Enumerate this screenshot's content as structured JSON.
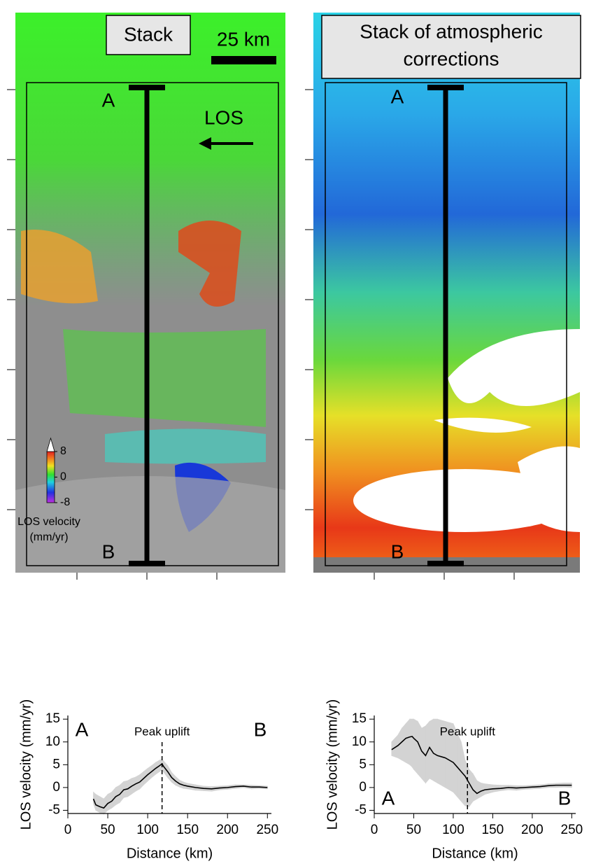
{
  "maps": [
    {
      "title": "Stack",
      "scale_label": "25 km",
      "profile_start": "A",
      "profile_end": "B",
      "los_label": "LOS",
      "colorbar": {
        "lim": [
          -8,
          8
        ],
        "ticks": [
          8,
          0,
          -8
        ],
        "label_lines": [
          "LOS velocity",
          "(mm/yr)"
        ]
      }
    },
    {
      "title_lines": [
        "Stack of atmospheric",
        "corrections"
      ],
      "profile_start": "A",
      "profile_end": "B"
    }
  ],
  "chart_data": [
    {
      "type": "line",
      "xlabel": "Distance (km)",
      "ylabel": "LOS velocity (mm/yr)",
      "xlim": [
        0,
        255
      ],
      "ylim": [
        -5.7,
        15.8
      ],
      "xticks": [
        0,
        50,
        100,
        150,
        200,
        250
      ],
      "yticks": [
        -5,
        0,
        5,
        10,
        15
      ],
      "label_start": "A",
      "label_end": "B",
      "label_position": "top",
      "peak_x": 118,
      "peak_label": "Peak uplift",
      "color": "#000000",
      "band_color": "#d3d3d3",
      "x": [
        32,
        35,
        40,
        45,
        50,
        55,
        60,
        65,
        70,
        75,
        80,
        85,
        90,
        95,
        100,
        105,
        110,
        115,
        118,
        120,
        125,
        130,
        135,
        140,
        145,
        150,
        160,
        170,
        180,
        190,
        200,
        210,
        220,
        230,
        240,
        250
      ],
      "values": [
        -2.5,
        -3.8,
        -4.2,
        -4.5,
        -3.5,
        -3,
        -2,
        -1.5,
        -0.5,
        -0.3,
        0.3,
        0.8,
        1.2,
        2,
        2.8,
        3.5,
        4.2,
        4.8,
        5.2,
        4.6,
        3.5,
        2.2,
        1.4,
        0.8,
        0.5,
        0.3,
        0,
        -0.2,
        -0.3,
        -0.1,
        0,
        0.2,
        0.3,
        0.1,
        0.1,
        0
      ],
      "upper": [
        -1,
        -1.5,
        -2,
        -2.5,
        -1.5,
        -1,
        0,
        0.5,
        1.3,
        1.5,
        2,
        2.3,
        2.8,
        3.5,
        4.2,
        4.8,
        5.5,
        6,
        6.2,
        5.8,
        4.8,
        3.3,
        2.4,
        1.6,
        1.2,
        0.9,
        0.6,
        0.3,
        0.2,
        0.3,
        0.4,
        0.6,
        0.6,
        0.5,
        0.4,
        0.3
      ],
      "lower": [
        -3.5,
        -5,
        -5.5,
        -5.8,
        -5,
        -4.5,
        -3.8,
        -3.3,
        -2.2,
        -2,
        -1.4,
        -0.8,
        -0.3,
        0.6,
        1.4,
        2.2,
        2.9,
        3.5,
        3.9,
        3.4,
        2.2,
        1.2,
        0.5,
        0.1,
        -0.2,
        -0.3,
        -0.6,
        -0.7,
        -0.8,
        -0.5,
        -0.4,
        -0.2,
        0,
        -0.3,
        -0.2,
        -0.3
      ]
    },
    {
      "type": "line",
      "xlabel": "Distance (km)",
      "ylabel": "LOS velocity (mm/yr)",
      "xlim": [
        0,
        255
      ],
      "ylim": [
        -5.7,
        15.8
      ],
      "xticks": [
        0,
        50,
        100,
        150,
        200,
        250
      ],
      "yticks": [
        -5,
        0,
        5,
        10,
        15
      ],
      "label_start": "A",
      "label_end": "B",
      "label_position": "bottom",
      "peak_x": 118,
      "peak_label": "Peak uplift",
      "color": "#000000",
      "band_color": "#d3d3d3",
      "x": [
        22,
        30,
        35,
        40,
        45,
        48,
        50,
        55,
        60,
        65,
        70,
        75,
        80,
        90,
        100,
        105,
        110,
        115,
        120,
        125,
        130,
        135,
        140,
        150,
        160,
        170,
        180,
        190,
        200,
        210,
        220,
        230,
        240,
        250
      ],
      "values": [
        8.3,
        9.2,
        10,
        10.8,
        11.1,
        11.2,
        10.8,
        10,
        8,
        7,
        8.8,
        7.5,
        7,
        6.5,
        5.5,
        4.5,
        3.5,
        2.5,
        1,
        -0.5,
        -1.3,
        -0.8,
        -0.5,
        -0.3,
        -0.2,
        0,
        -0.1,
        0,
        0.1,
        0.2,
        0.4,
        0.5,
        0.5,
        0.5
      ],
      "upper": [
        10,
        11.5,
        13,
        14,
        15,
        15,
        15,
        14.5,
        13,
        13.5,
        14.5,
        15,
        15,
        14.5,
        14,
        12,
        10,
        6,
        4,
        3,
        1.5,
        1,
        0.8,
        0.6,
        0.5,
        0.5,
        0.4,
        0.4,
        0.5,
        0.6,
        0.8,
        0.9,
        1,
        1
      ],
      "lower": [
        7,
        6.5,
        6,
        5.5,
        5,
        4.5,
        4,
        3,
        2,
        1,
        2,
        1.5,
        1,
        0,
        -1,
        -2,
        -3,
        -4,
        -4.2,
        -3,
        -2.5,
        -2,
        -1.5,
        -1,
        -0.7,
        -0.5,
        -0.6,
        -0.4,
        -0.3,
        -0.2,
        0,
        0,
        0.1,
        0
      ]
    }
  ]
}
